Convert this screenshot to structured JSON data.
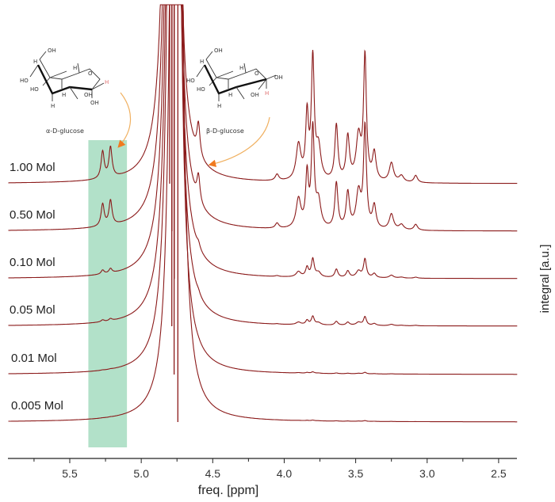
{
  "chart_data": {
    "type": "line",
    "title": "",
    "xlabel": "freq. [ppm]",
    "ylabel": "integral [a.u.]",
    "xlim": [
      5.93,
      2.37
    ],
    "xticks": [
      5.5,
      5.0,
      4.5,
      4.0,
      3.5,
      3.0,
      2.5
    ],
    "xtick_labels": [
      "5.5",
      "5.0",
      "4.5",
      "4.0",
      "3.5",
      "3.0",
      "2.5"
    ],
    "highlight_region_ppm": [
      5.37,
      5.1
    ],
    "highlight_color": "#9fd9bb",
    "line_color": "#8b1a1a",
    "peaks": [
      {
        "ppm": 5.27,
        "height": 34,
        "width": 0.013,
        "assign": "alpha-anomeric H"
      },
      {
        "ppm": 5.215,
        "height": 38,
        "width": 0.013,
        "assign": "alpha-anomeric H"
      },
      {
        "ppm": 4.715,
        "height": 30,
        "width": 0.012
      },
      {
        "ppm": 4.6,
        "height": 40,
        "width": 0.013,
        "assign": "beta-anomeric H"
      },
      {
        "ppm": 4.05,
        "height": 8,
        "width": 0.015
      },
      {
        "ppm": 3.9,
        "height": 45,
        "width": 0.02
      },
      {
        "ppm": 3.84,
        "height": 80,
        "width": 0.012
      },
      {
        "ppm": 3.8,
        "height": 150,
        "width": 0.012
      },
      {
        "ppm": 3.76,
        "height": 40,
        "width": 0.02
      },
      {
        "ppm": 3.635,
        "height": 70,
        "width": 0.013
      },
      {
        "ppm": 3.555,
        "height": 55,
        "width": 0.014
      },
      {
        "ppm": 3.48,
        "height": 55,
        "width": 0.02
      },
      {
        "ppm": 3.435,
        "height": 155,
        "width": 0.012
      },
      {
        "ppm": 3.37,
        "height": 35,
        "width": 0.015
      },
      {
        "ppm": 3.25,
        "height": 24,
        "width": 0.018
      },
      {
        "ppm": 3.18,
        "height": 8,
        "width": 0.02
      },
      {
        "ppm": 3.08,
        "height": 9,
        "width": 0.015
      }
    ],
    "series": [
      {
        "name": "1.00 Mol",
        "scale": 1.0,
        "water_ppm": 4.79
      },
      {
        "name": "0.50 Mol",
        "scale": 0.82,
        "water_ppm": 4.785
      },
      {
        "name": "0.10 Mol",
        "scale": 0.15,
        "water_ppm": 4.78
      },
      {
        "name": "0.05 Mol",
        "scale": 0.07,
        "water_ppm": 4.775
      },
      {
        "name": "0.01 Mol",
        "scale": 0.012,
        "water_ppm": 4.77
      },
      {
        "name": "0.005 Mol",
        "scale": 0.006,
        "water_ppm": 4.755
      }
    ]
  },
  "molecules": [
    {
      "name": "α-D-glucose",
      "atoms": [
        "OH",
        "H",
        "HO",
        "H",
        "O",
        "HO",
        "H",
        "OH",
        "H",
        "OH",
        "H"
      ]
    },
    {
      "name": "β-D-glucose",
      "atoms": [
        "OH",
        "H",
        "HO",
        "H",
        "O",
        "HO",
        "H",
        "OH",
        "H",
        "OH",
        "H"
      ]
    }
  ]
}
